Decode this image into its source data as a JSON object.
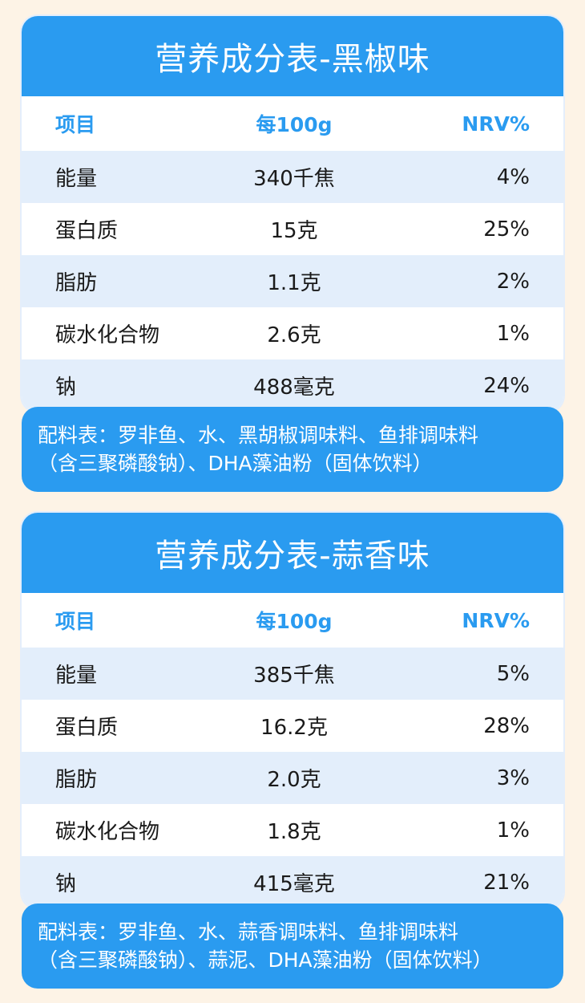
{
  "tables": [
    {
      "title": "营养成分表-黑椒味",
      "header": {
        "item": "项目",
        "per100g": "每100g",
        "nrv": "NRV%"
      },
      "rows": [
        {
          "item": "能量",
          "per100g": "340千焦",
          "nrv": "4%"
        },
        {
          "item": "蛋白质",
          "per100g": "15克",
          "nrv": "25%"
        },
        {
          "item": "脂肪",
          "per100g": "1.1克",
          "nrv": "2%"
        },
        {
          "item": "碳水化合物",
          "per100g": "2.6克",
          "nrv": "1%"
        },
        {
          "item": "钠",
          "per100g": "488毫克",
          "nrv": "24%"
        }
      ],
      "ingredients_line1": "配料表：罗非鱼、水、黑胡椒调味料、鱼排调味料",
      "ingredients_line2": "（含三聚磷酸钠）、DHA藻油粉（固体饮料）"
    },
    {
      "title": "营养成分表-蒜香味",
      "header": {
        "item": "项目",
        "per100g": "每100g",
        "nrv": "NRV%"
      },
      "rows": [
        {
          "item": "能量",
          "per100g": "385千焦",
          "nrv": "5%"
        },
        {
          "item": "蛋白质",
          "per100g": "16.2克",
          "nrv": "28%"
        },
        {
          "item": "脂肪",
          "per100g": "2.0克",
          "nrv": "3%"
        },
        {
          "item": "碳水化合物",
          "per100g": "1.8克",
          "nrv": "1%"
        },
        {
          "item": "钠",
          "per100g": "415毫克",
          "nrv": "21%"
        }
      ],
      "ingredients_line1": "配料表：罗非鱼、水、蒜香调味料、鱼排调味料",
      "ingredients_line2": "（含三聚磷酸钠）、蒜泥、DHA藻油粉（固体饮料）"
    }
  ],
  "colors": {
    "accent": "#2a9bf0",
    "row_alt": "#e3eefb",
    "background": "#fdf3e6"
  }
}
